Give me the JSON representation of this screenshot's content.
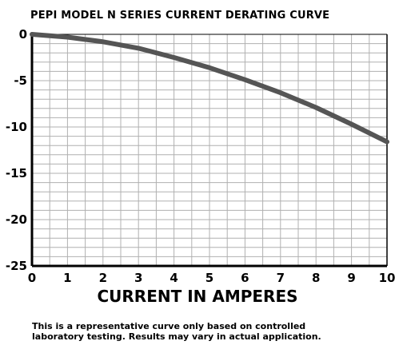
{
  "chart_data": {
    "type": "line",
    "title": "PEPI MODEL N SERIES CURRENT DERATING CURVE",
    "xlabel": "CURRENT IN AMPERES",
    "ylabel": "",
    "xlim": [
      0,
      10
    ],
    "ylim": [
      -25,
      0
    ],
    "grid": true,
    "x_ticks": [
      "0",
      "1",
      "2",
      "3",
      "4",
      "5",
      "6",
      "7",
      "8",
      "9",
      "10"
    ],
    "y_ticks": [
      "0",
      "-5",
      "-10",
      "-15",
      "-20",
      "-25"
    ],
    "series": [
      {
        "color": "#555555",
        "x": [
          0,
          1,
          2,
          3,
          4,
          5,
          6,
          7,
          8,
          9,
          10
        ],
        "y": [
          0,
          -0.3,
          -0.8,
          -1.5,
          -2.5,
          -3.6,
          -4.9,
          -6.3,
          -7.9,
          -9.7,
          -11.6
        ]
      }
    ]
  },
  "note": {
    "line1": "This is a representative curve only based on controlled",
    "line2": "laboratory testing. Results may vary in actual application."
  }
}
